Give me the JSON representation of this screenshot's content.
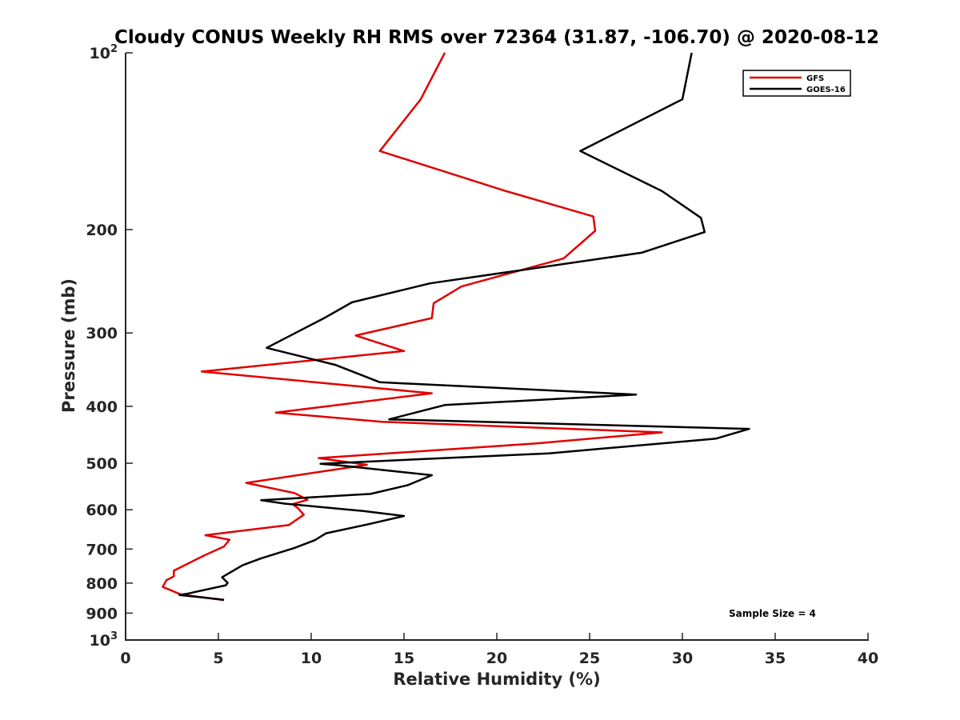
{
  "chart_data": {
    "type": "line",
    "title": "Cloudy CONUS Weekly RH RMS over 72364 (31.87, -106.70) @ 2020-08-12",
    "xlabel": "Relative Humidity (%)",
    "ylabel": "Pressure (mb)",
    "xlim": [
      0,
      40
    ],
    "ylim": [
      100,
      1000
    ],
    "y_scale": "log",
    "y_reversed": true,
    "x_ticks": [
      "0",
      "5",
      "10",
      "15",
      "20",
      "25",
      "30",
      "35",
      "40"
    ],
    "y_ticks": [
      {
        "value": 100,
        "base": "10",
        "exp": "2"
      },
      {
        "value": 200,
        "label": "200"
      },
      {
        "value": 300,
        "label": "300"
      },
      {
        "value": 400,
        "label": "400"
      },
      {
        "value": 500,
        "label": "500"
      },
      {
        "value": 600,
        "label": "600"
      },
      {
        "value": 700,
        "label": "700"
      },
      {
        "value": 800,
        "label": "800"
      },
      {
        "value": 900,
        "label": "900"
      },
      {
        "value": 1000,
        "base": "10",
        "exp": "3"
      }
    ],
    "legend_position": "top-right",
    "annotation": "Sample Size = 4",
    "series": [
      {
        "name": "GFS",
        "color": "#e00000",
        "points": [
          [
            17.2,
            100
          ],
          [
            15.9,
            120
          ],
          [
            13.7,
            147
          ],
          [
            20.5,
            172
          ],
          [
            25.2,
            190
          ],
          [
            25.3,
            201
          ],
          [
            23.6,
            224
          ],
          [
            18.1,
            250
          ],
          [
            16.6,
            267
          ],
          [
            16.5,
            283
          ],
          [
            12.4,
            303
          ],
          [
            15.0,
            322
          ],
          [
            4.1,
            349
          ],
          [
            16.5,
            380
          ],
          [
            8.1,
            410
          ],
          [
            13.8,
            425
          ],
          [
            28.9,
            443
          ],
          [
            22.0,
            463
          ],
          [
            10.4,
            490
          ],
          [
            13.0,
            503
          ],
          [
            6.5,
            540
          ],
          [
            9.1,
            562
          ],
          [
            9.8,
            577
          ],
          [
            9.0,
            587
          ],
          [
            9.3,
            597
          ],
          [
            9.6,
            612
          ],
          [
            8.8,
            637
          ],
          [
            4.3,
            663
          ],
          [
            5.6,
            675
          ],
          [
            5.3,
            693
          ],
          [
            4.2,
            719
          ],
          [
            2.6,
            762
          ],
          [
            2.6,
            779
          ],
          [
            2.2,
            791
          ],
          [
            2.0,
            812
          ],
          [
            3.0,
            837
          ],
          [
            5.3,
            855
          ]
        ]
      },
      {
        "name": "GOES-16",
        "color": "#000000",
        "points": [
          [
            30.5,
            100
          ],
          [
            30.0,
            120
          ],
          [
            24.5,
            147
          ],
          [
            28.9,
            172
          ],
          [
            31.0,
            191
          ],
          [
            31.2,
            202
          ],
          [
            27.8,
            219
          ],
          [
            16.4,
            247
          ],
          [
            12.2,
            266
          ],
          [
            10.7,
            283
          ],
          [
            7.6,
            318
          ],
          [
            11.3,
            340
          ],
          [
            13.7,
            364
          ],
          [
            27.5,
            382
          ],
          [
            17.2,
            398
          ],
          [
            14.2,
            421
          ],
          [
            33.6,
            437
          ],
          [
            31.8,
            454
          ],
          [
            22.8,
            481
          ],
          [
            10.5,
            501
          ],
          [
            11.5,
            504
          ],
          [
            16.5,
            524
          ],
          [
            15.2,
            545
          ],
          [
            13.2,
            564
          ],
          [
            7.3,
            578
          ],
          [
            8.6,
            586
          ],
          [
            12.8,
            603
          ],
          [
            15.0,
            615
          ],
          [
            13.1,
            635
          ],
          [
            10.8,
            658
          ],
          [
            10.2,
            676
          ],
          [
            9.1,
            697
          ],
          [
            7.3,
            726
          ],
          [
            6.3,
            746
          ],
          [
            5.2,
            782
          ],
          [
            5.5,
            799
          ],
          [
            5.4,
            807
          ],
          [
            3.7,
            829
          ],
          [
            3.4,
            833
          ],
          [
            2.9,
            838
          ],
          [
            5.3,
            854
          ]
        ]
      }
    ]
  }
}
